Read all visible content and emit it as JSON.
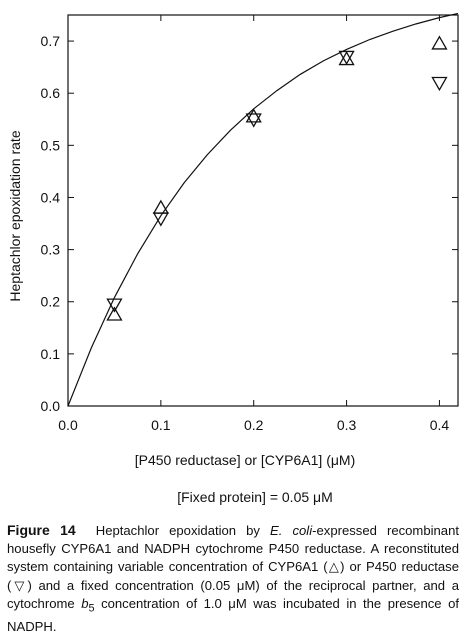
{
  "chart_data": {
    "type": "scatter",
    "xlabel": "[P450 reductase] or [CYP6A1] (μM)",
    "ylabel": "Heptachlor epoxidation rate",
    "note": "[Fixed protein] = 0.05 μM",
    "xlim": [
      0.0,
      0.42
    ],
    "ylim": [
      0.0,
      0.75
    ],
    "xticks": [
      "0.0",
      "0.1",
      "0.2",
      "0.3",
      "0.4"
    ],
    "yticks": [
      "0.0",
      "0.1",
      "0.2",
      "0.3",
      "0.4",
      "0.5",
      "0.6",
      "0.7"
    ],
    "series": [
      {
        "marker": "triangle-up",
        "x": [
          0.05,
          0.1,
          0.2,
          0.3,
          0.4
        ],
        "y": [
          0.175,
          0.38,
          0.555,
          0.665,
          0.695
        ]
      },
      {
        "marker": "triangle-down",
        "x": [
          0.05,
          0.1,
          0.2,
          0.3,
          0.4
        ],
        "y": [
          0.195,
          0.36,
          0.55,
          0.67,
          0.62
        ]
      }
    ],
    "fit_curve": {
      "x": [
        0.0,
        0.025,
        0.05,
        0.075,
        0.1,
        0.125,
        0.15,
        0.175,
        0.2,
        0.225,
        0.25,
        0.275,
        0.3,
        0.325,
        0.35,
        0.375,
        0.4,
        0.42
      ],
      "y": [
        0.0,
        0.111,
        0.208,
        0.292,
        0.365,
        0.428,
        0.482,
        0.529,
        0.57,
        0.605,
        0.636,
        0.662,
        0.684,
        0.703,
        0.719,
        0.733,
        0.745,
        0.753
      ]
    },
    "grid": false,
    "legend": "none"
  },
  "caption": {
    "label": "Figure 14",
    "part1": "Heptachlor epoxidation by ",
    "organism": "E. coli",
    "part2": "-expressed recombinant housefly CYP6A1 and NADPH cytochrome P450 reductase. A reconstituted system containing variable concentration of CYP6A1 (△) or P450 reductase (▽) and a fixed concentration (0.05 μM) of the reciprocal partner, and a cytochrome ",
    "cyt_b": "b",
    "cyt_sub": "5",
    "part3": " concentration of 1.0 μM was incubated in the presence of NADPH."
  }
}
